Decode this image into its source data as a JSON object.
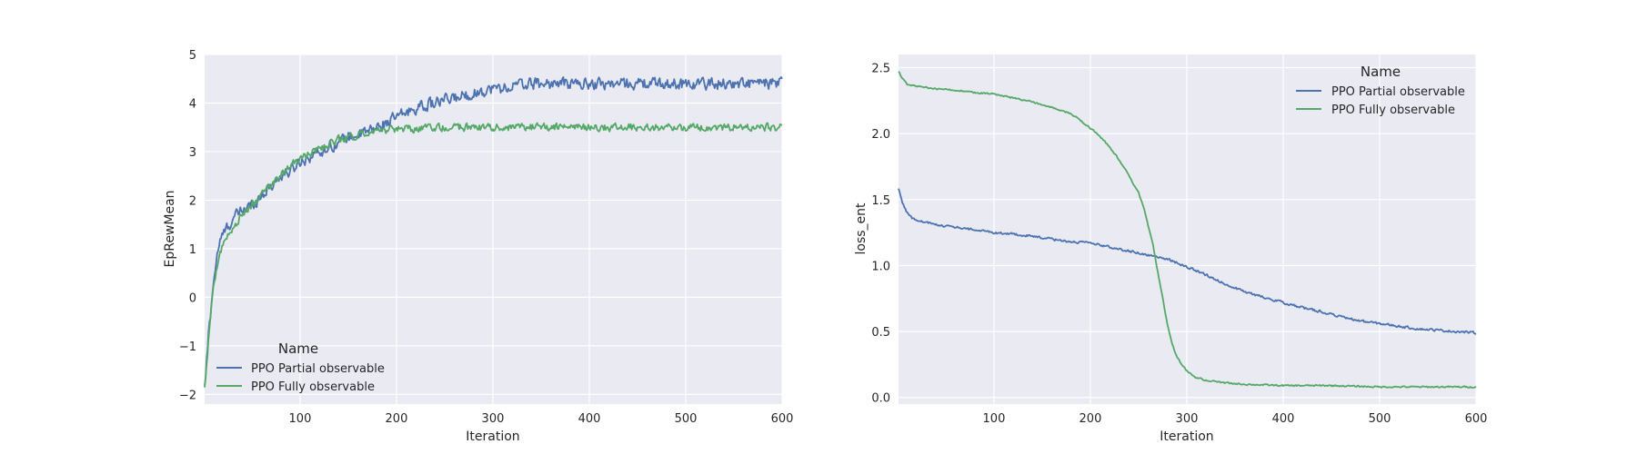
{
  "chart_data": [
    {
      "type": "line",
      "title": "",
      "xlabel": "Iteration",
      "ylabel": "EpRewMean",
      "xlim": [
        1,
        600
      ],
      "ylim": [
        -2.2,
        5
      ],
      "xticks": [
        100,
        200,
        300,
        400,
        500,
        600
      ],
      "yticks": [
        -2,
        -1,
        0,
        1,
        2,
        3,
        4,
        5
      ],
      "ytick_labels": [
        "−2",
        "−1",
        "0",
        "1",
        "2",
        "3",
        "4",
        "5"
      ],
      "grid": true,
      "legend": {
        "title": "Name",
        "position": "lower-left"
      },
      "series": [
        {
          "name": "PPO Partial observable",
          "color": "#4c72b0",
          "x": [
            1,
            5,
            10,
            15,
            20,
            30,
            40,
            50,
            60,
            70,
            80,
            90,
            100,
            110,
            120,
            130,
            140,
            150,
            160,
            170,
            180,
            190,
            200,
            210,
            220,
            230,
            240,
            250,
            260,
            270,
            280,
            290,
            300,
            310,
            320,
            340,
            360,
            380,
            400,
            420,
            440,
            460,
            480,
            500,
            520,
            540,
            560,
            580,
            600
          ],
          "y": [
            -1.9,
            -0.8,
            0.3,
            1.0,
            1.3,
            1.6,
            1.8,
            1.9,
            2.1,
            2.3,
            2.5,
            2.6,
            2.8,
            2.9,
            3.0,
            3.1,
            3.2,
            3.3,
            3.35,
            3.4,
            3.5,
            3.6,
            3.7,
            3.8,
            3.9,
            3.95,
            4.0,
            4.05,
            4.1,
            4.15,
            4.2,
            4.25,
            4.3,
            4.3,
            4.35,
            4.4,
            4.4,
            4.4,
            4.4,
            4.4,
            4.4,
            4.4,
            4.4,
            4.4,
            4.4,
            4.4,
            4.4,
            4.4,
            4.4
          ],
          "noise": 0.17
        },
        {
          "name": "PPO Fully observable",
          "color": "#55a868",
          "x": [
            1,
            5,
            10,
            15,
            20,
            30,
            40,
            50,
            60,
            70,
            80,
            90,
            100,
            110,
            120,
            130,
            140,
            150,
            160,
            170,
            180,
            190,
            200,
            220,
            240,
            260,
            280,
            300,
            320,
            340,
            360,
            380,
            400,
            420,
            440,
            460,
            480,
            500,
            520,
            540,
            560,
            580,
            600
          ],
          "y": [
            -1.9,
            -0.9,
            0.2,
            0.8,
            1.1,
            1.4,
            1.7,
            1.9,
            2.1,
            2.3,
            2.5,
            2.7,
            2.85,
            2.95,
            3.05,
            3.15,
            3.25,
            3.3,
            3.35,
            3.4,
            3.42,
            3.44,
            3.45,
            3.47,
            3.49,
            3.5,
            3.5,
            3.5,
            3.5,
            3.5,
            3.5,
            3.5,
            3.5,
            3.5,
            3.5,
            3.5,
            3.5,
            3.5,
            3.5,
            3.5,
            3.5,
            3.5,
            3.5
          ],
          "noise": 0.11
        }
      ]
    },
    {
      "type": "line",
      "title": "",
      "xlabel": "Iteration",
      "ylabel": "loss_ent",
      "xlim": [
        1,
        600
      ],
      "ylim": [
        -0.05,
        2.6
      ],
      "xticks": [
        100,
        200,
        300,
        400,
        500,
        600
      ],
      "yticks": [
        0.0,
        0.5,
        1.0,
        1.5,
        2.0,
        2.5
      ],
      "ytick_labels": [
        "0.0",
        "0.5",
        "1.0",
        "1.5",
        "2.0",
        "2.5"
      ],
      "grid": true,
      "legend": {
        "title": "Name",
        "position": "upper-right"
      },
      "series": [
        {
          "name": "PPO Partial observable",
          "color": "#4c72b0",
          "x": [
            1,
            5,
            10,
            15,
            20,
            40,
            60,
            80,
            100,
            120,
            140,
            160,
            180,
            200,
            220,
            240,
            260,
            280,
            300,
            320,
            340,
            360,
            380,
            400,
            420,
            440,
            460,
            480,
            500,
            520,
            540,
            560,
            580,
            600
          ],
          "y": [
            1.58,
            1.48,
            1.4,
            1.36,
            1.34,
            1.31,
            1.29,
            1.27,
            1.25,
            1.24,
            1.22,
            1.2,
            1.18,
            1.17,
            1.14,
            1.11,
            1.08,
            1.05,
            0.99,
            0.93,
            0.86,
            0.8,
            0.76,
            0.72,
            0.68,
            0.65,
            0.61,
            0.58,
            0.56,
            0.54,
            0.52,
            0.51,
            0.5,
            0.49
          ],
          "noise": 0.012
        },
        {
          "name": "PPO Fully observable",
          "color": "#55a868",
          "x": [
            1,
            5,
            10,
            20,
            40,
            60,
            80,
            100,
            120,
            140,
            160,
            180,
            190,
            200,
            210,
            220,
            230,
            240,
            250,
            255,
            260,
            265,
            270,
            275,
            280,
            285,
            290,
            300,
            310,
            320,
            330,
            340,
            360,
            400,
            450,
            500,
            550,
            600
          ],
          "y": [
            2.47,
            2.42,
            2.37,
            2.36,
            2.34,
            2.33,
            2.31,
            2.3,
            2.27,
            2.24,
            2.2,
            2.15,
            2.1,
            2.04,
            1.98,
            1.9,
            1.8,
            1.68,
            1.55,
            1.45,
            1.3,
            1.15,
            0.95,
            0.75,
            0.55,
            0.4,
            0.3,
            0.2,
            0.15,
            0.13,
            0.12,
            0.11,
            0.1,
            0.09,
            0.09,
            0.08,
            0.08,
            0.08
          ],
          "noise": 0.008
        }
      ]
    }
  ]
}
